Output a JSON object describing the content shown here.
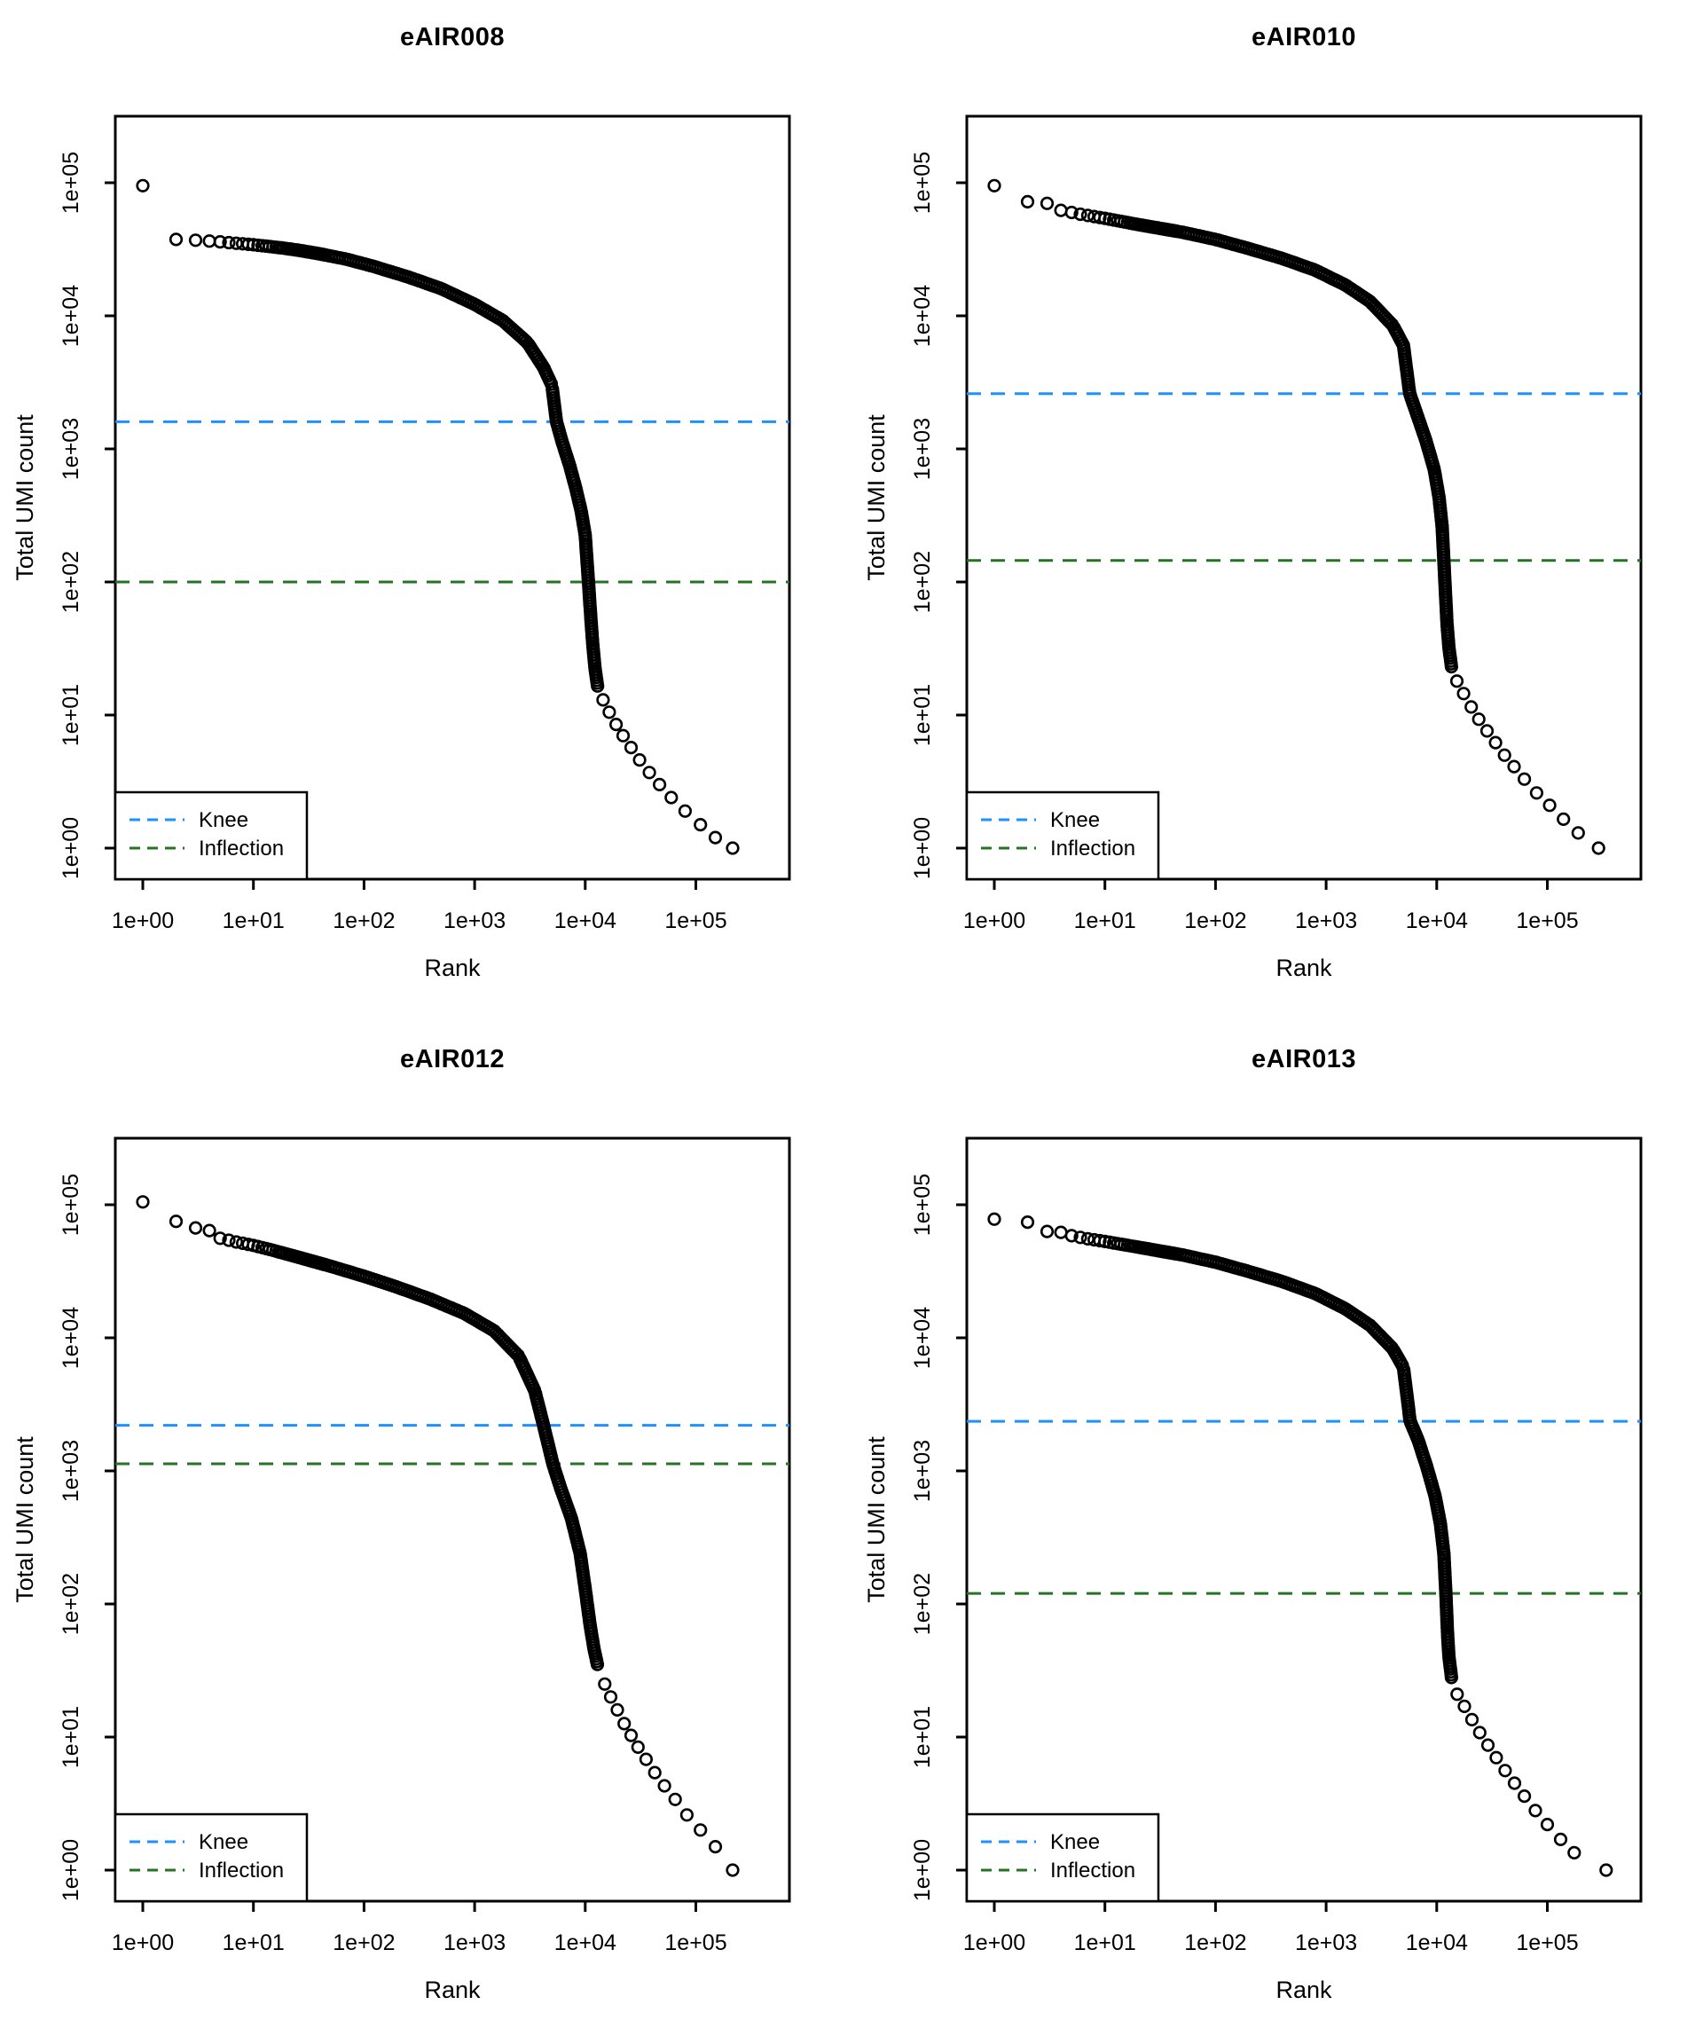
{
  "figure": {
    "background": "#FFFFFF",
    "axis_color": "#000000",
    "point_color": "#000000",
    "x_tick_labels": [
      "1e+00",
      "1e+01",
      "1e+02",
      "1e+03",
      "1e+04",
      "1e+05"
    ],
    "y_tick_labels": [
      "1e+00",
      "1e+01",
      "1e+02",
      "1e+03",
      "1e+04",
      "1e+05"
    ],
    "legend": {
      "position": "bottomleft",
      "items": [
        {
          "label": "Knee",
          "color": "#1E90FF"
        },
        {
          "label": "Inflection",
          "color": "#267326"
        }
      ]
    }
  },
  "chart_data": [
    {
      "type": "scatter",
      "title": "eAIR008",
      "xlabel": "Rank",
      "ylabel": "Total UMI count",
      "x_scale": "log",
      "y_scale": "log",
      "xlim": [
        0.56,
        710000
      ],
      "ylim": [
        0.45,
        320000
      ],
      "knee": 1600,
      "inflection": 100,
      "curve": [
        [
          1,
          95000
        ],
        [
          2,
          37500
        ],
        [
          3,
          37000
        ],
        [
          4,
          36500
        ],
        [
          5,
          36000
        ],
        [
          6,
          35500
        ],
        [
          8,
          34800
        ],
        [
          10,
          34200
        ],
        [
          13,
          33400
        ],
        [
          18,
          32400
        ],
        [
          25,
          31200
        ],
        [
          40,
          29200
        ],
        [
          70,
          26600
        ],
        [
          120,
          23600
        ],
        [
          250,
          19600
        ],
        [
          500,
          16000
        ],
        [
          1000,
          12200
        ],
        [
          1800,
          9200
        ],
        [
          3000,
          6300
        ],
        [
          4200,
          4100
        ],
        [
          5000,
          3000
        ],
        [
          5500,
          1600
        ],
        [
          6200,
          1120
        ],
        [
          7200,
          760
        ],
        [
          8200,
          510
        ],
        [
          9200,
          340
        ],
        [
          10000,
          225
        ],
        [
          10700,
          100
        ],
        [
          11200,
          56
        ],
        [
          11700,
          34
        ],
        [
          12300,
          22
        ],
        [
          13000,
          16
        ]
      ],
      "tail": [
        [
          14500,
          13
        ],
        [
          16500,
          10.5
        ],
        [
          19000,
          8.5
        ],
        [
          22000,
          7
        ],
        [
          26000,
          5.7
        ],
        [
          31000,
          4.6
        ],
        [
          38000,
          3.7
        ],
        [
          47000,
          3
        ],
        [
          60000,
          2.4
        ],
        [
          80000,
          1.9
        ],
        [
          110000,
          1.5
        ],
        [
          150000,
          1.2
        ]
      ],
      "last_point": [
        215000,
        1
      ]
    },
    {
      "type": "scatter",
      "title": "eAIR010",
      "xlabel": "Rank",
      "ylabel": "Total UMI count",
      "x_scale": "log",
      "y_scale": "log",
      "xlim": [
        0.56,
        710000
      ],
      "ylim": [
        0.45,
        320000
      ],
      "knee": 2600,
      "inflection": 145,
      "curve": [
        [
          1,
          95000
        ],
        [
          2,
          72000
        ],
        [
          3,
          70000
        ],
        [
          4,
          62000
        ],
        [
          6,
          58000
        ],
        [
          10,
          54000
        ],
        [
          20,
          48500
        ],
        [
          50,
          42500
        ],
        [
          100,
          37500
        ],
        [
          200,
          32000
        ],
        [
          400,
          27000
        ],
        [
          800,
          22000
        ],
        [
          1500,
          17000
        ],
        [
          2500,
          12800
        ],
        [
          4000,
          8500
        ],
        [
          5000,
          6000
        ],
        [
          5700,
          2600
        ],
        [
          6500,
          1900
        ],
        [
          8000,
          1150
        ],
        [
          9500,
          700
        ],
        [
          10500,
          430
        ],
        [
          11200,
          260
        ],
        [
          11600,
          145
        ],
        [
          12000,
          82
        ],
        [
          12400,
          48
        ],
        [
          12900,
          32
        ],
        [
          13600,
          23
        ]
      ],
      "tail": [
        [
          15200,
          18
        ],
        [
          17500,
          14.5
        ],
        [
          20500,
          11.5
        ],
        [
          24000,
          9.3
        ],
        [
          28500,
          7.6
        ],
        [
          34000,
          6.2
        ],
        [
          41000,
          5
        ],
        [
          50000,
          4.1
        ],
        [
          62000,
          3.3
        ],
        [
          80000,
          2.6
        ],
        [
          105000,
          2.1
        ],
        [
          140000,
          1.65
        ],
        [
          190000,
          1.3
        ]
      ],
      "last_point": [
        290000,
        1
      ]
    },
    {
      "type": "scatter",
      "title": "eAIR012",
      "xlabel": "Rank",
      "ylabel": "Total UMI count",
      "x_scale": "log",
      "y_scale": "log",
      "xlim": [
        0.56,
        710000
      ],
      "ylim": [
        0.45,
        320000
      ],
      "knee": 2200,
      "inflection": 1130,
      "curve": [
        [
          1,
          105000
        ],
        [
          2,
          75000
        ],
        [
          3,
          67000
        ],
        [
          4,
          64000
        ],
        [
          5,
          56000
        ],
        [
          7,
          52500
        ],
        [
          10,
          49500
        ],
        [
          15,
          45500
        ],
        [
          25,
          40500
        ],
        [
          50,
          34500
        ],
        [
          100,
          29000
        ],
        [
          200,
          24000
        ],
        [
          400,
          19500
        ],
        [
          800,
          15300
        ],
        [
          1500,
          11300
        ],
        [
          2500,
          7300
        ],
        [
          3500,
          4000
        ],
        [
          4200,
          2200
        ],
        [
          5100,
          1130
        ],
        [
          6000,
          740
        ],
        [
          7500,
          440
        ],
        [
          9000,
          240
        ],
        [
          10000,
          130
        ],
        [
          11000,
          72
        ],
        [
          12000,
          46
        ],
        [
          13000,
          34
        ]
      ],
      "tail": [
        [
          15000,
          25
        ],
        [
          17000,
          20
        ],
        [
          19500,
          16
        ],
        [
          22500,
          12.6
        ],
        [
          26000,
          10.3
        ],
        [
          30000,
          8.4
        ],
        [
          35500,
          6.8
        ],
        [
          42500,
          5.4
        ],
        [
          52000,
          4.3
        ],
        [
          65000,
          3.4
        ],
        [
          83000,
          2.6
        ],
        [
          110000,
          2
        ],
        [
          150000,
          1.5
        ]
      ],
      "last_point": [
        215000,
        1
      ]
    },
    {
      "type": "scatter",
      "title": "eAIR013",
      "xlabel": "Rank",
      "ylabel": "Total UMI count",
      "x_scale": "log",
      "y_scale": "log",
      "xlim": [
        0.56,
        710000
      ],
      "ylim": [
        0.45,
        320000
      ],
      "knee": 2360,
      "inflection": 120,
      "curve": [
        [
          1,
          78000
        ],
        [
          2,
          74000
        ],
        [
          3,
          63000
        ],
        [
          4,
          62000
        ],
        [
          5,
          58500
        ],
        [
          7,
          55500
        ],
        [
          10,
          53000
        ],
        [
          20,
          48000
        ],
        [
          50,
          42000
        ],
        [
          100,
          37000
        ],
        [
          200,
          31500
        ],
        [
          400,
          26500
        ],
        [
          800,
          21500
        ],
        [
          1500,
          16500
        ],
        [
          2500,
          12400
        ],
        [
          4000,
          8300
        ],
        [
          5000,
          6000
        ],
        [
          5750,
          2360
        ],
        [
          6800,
          1700
        ],
        [
          8200,
          1050
        ],
        [
          9700,
          640
        ],
        [
          10800,
          400
        ],
        [
          11600,
          240
        ],
        [
          12100,
          120
        ],
        [
          12500,
          62
        ],
        [
          12900,
          40
        ],
        [
          13600,
          28
        ]
      ],
      "tail": [
        [
          15300,
          21
        ],
        [
          17800,
          17
        ],
        [
          20800,
          13.5
        ],
        [
          24500,
          10.8
        ],
        [
          29000,
          8.7
        ],
        [
          34500,
          7
        ],
        [
          41500,
          5.6
        ],
        [
          50500,
          4.5
        ],
        [
          62000,
          3.6
        ],
        [
          78000,
          2.8
        ],
        [
          100000,
          2.2
        ],
        [
          132000,
          1.7
        ],
        [
          175000,
          1.35
        ]
      ],
      "last_point": [
        340000,
        1
      ]
    }
  ]
}
